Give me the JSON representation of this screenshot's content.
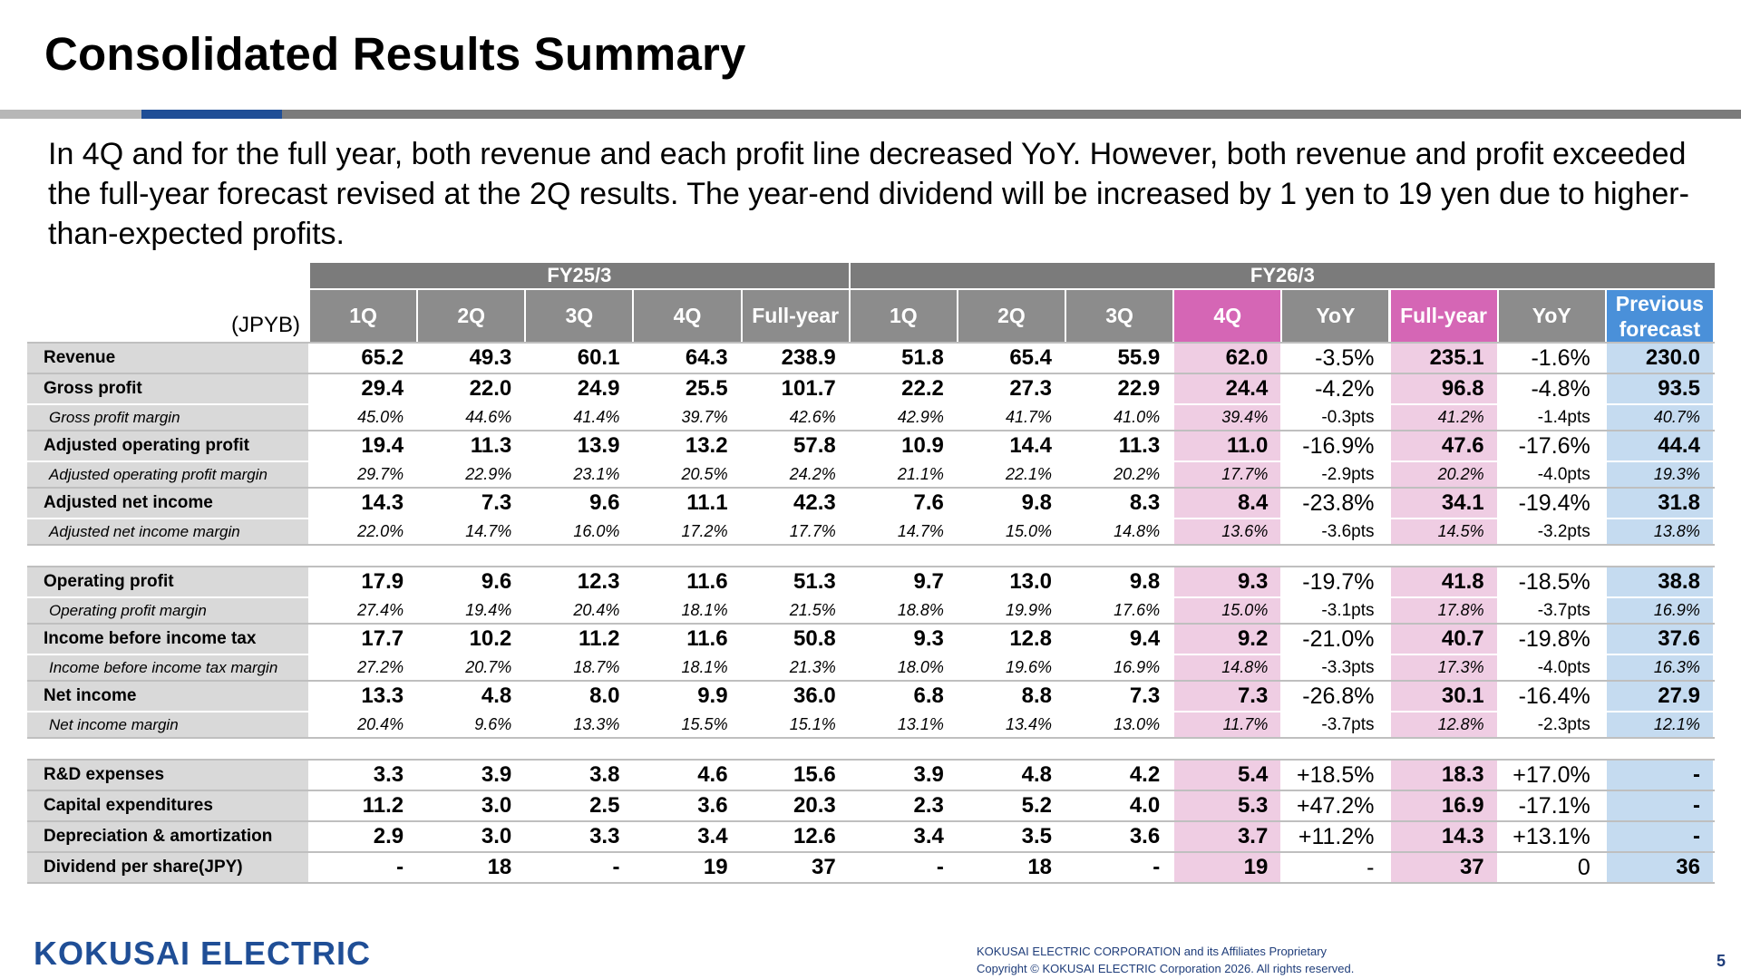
{
  "title": "Consolidated Results Summary",
  "intro": "In 4Q and for the full year, both revenue and each profit line decreased YoY. However, both revenue and profit exceeded the full-year forecast revised at the 2Q results. The year-end dividend will be increased by 1 yen to 19 yen due to higher-than-expected profits.",
  "table": {
    "unit": "(JPYB)",
    "groups": [
      "FY25/3",
      "FY26/3"
    ],
    "columns": [
      "1Q",
      "2Q",
      "3Q",
      "4Q",
      "Full-year",
      "1Q",
      "2Q",
      "3Q",
      "4Q",
      "YoY",
      "Full-year",
      "YoY",
      "Previous forecast"
    ],
    "column_colors": {
      "gray": "#8c8c8c",
      "pink": "#d566b5",
      "blue": "#4a90d9",
      "group": "#7b7b7b"
    },
    "rows": [
      {
        "label": "Revenue",
        "type": "main",
        "values": [
          "65.2",
          "49.3",
          "60.1",
          "64.3",
          "238.9",
          "51.8",
          "65.4",
          "55.9",
          "62.0",
          "-3.5%",
          "235.1",
          "-1.6%",
          "230.0"
        ]
      },
      {
        "label": "Gross profit",
        "type": "main",
        "values": [
          "29.4",
          "22.0",
          "24.9",
          "25.5",
          "101.7",
          "22.2",
          "27.3",
          "22.9",
          "24.4",
          "-4.2%",
          "96.8",
          "-4.8%",
          "93.5"
        ]
      },
      {
        "label": "Gross profit margin",
        "type": "sub",
        "values": [
          "45.0%",
          "44.6%",
          "41.4%",
          "39.7%",
          "42.6%",
          "42.9%",
          "41.7%",
          "41.0%",
          "39.4%",
          "-0.3pts",
          "41.2%",
          "-1.4pts",
          "40.7%"
        ]
      },
      {
        "label": "Adjusted operating profit",
        "type": "main",
        "values": [
          "19.4",
          "11.3",
          "13.9",
          "13.2",
          "57.8",
          "10.9",
          "14.4",
          "11.3",
          "11.0",
          "-16.9%",
          "47.6",
          "-17.6%",
          "44.4"
        ]
      },
      {
        "label": "Adjusted operating profit margin",
        "type": "sub",
        "values": [
          "29.7%",
          "22.9%",
          "23.1%",
          "20.5%",
          "24.2%",
          "21.1%",
          "22.1%",
          "20.2%",
          "17.7%",
          "-2.9pts",
          "20.2%",
          "-4.0pts",
          "19.3%"
        ]
      },
      {
        "label": "Adjusted net income",
        "type": "main",
        "values": [
          "14.3",
          "7.3",
          "9.6",
          "11.1",
          "42.3",
          "7.6",
          "9.8",
          "8.3",
          "8.4",
          "-23.8%",
          "34.1",
          "-19.4%",
          "31.8"
        ]
      },
      {
        "label": "Adjusted net income margin",
        "type": "sub",
        "values": [
          "22.0%",
          "14.7%",
          "16.0%",
          "17.2%",
          "17.7%",
          "14.7%",
          "15.0%",
          "14.8%",
          "13.6%",
          "-3.6pts",
          "14.5%",
          "-3.2pts",
          "13.8%"
        ]
      },
      {
        "label": "Operating profit",
        "type": "main",
        "values": [
          "17.9",
          "9.6",
          "12.3",
          "11.6",
          "51.3",
          "9.7",
          "13.0",
          "9.8",
          "9.3",
          "-19.7%",
          "41.8",
          "-18.5%",
          "38.8"
        ]
      },
      {
        "label": "Operating profit margin",
        "type": "sub",
        "values": [
          "27.4%",
          "19.4%",
          "20.4%",
          "18.1%",
          "21.5%",
          "18.8%",
          "19.9%",
          "17.6%",
          "15.0%",
          "-3.1pts",
          "17.8%",
          "-3.7pts",
          "16.9%"
        ]
      },
      {
        "label": "Income before income tax",
        "type": "main",
        "values": [
          "17.7",
          "10.2",
          "11.2",
          "11.6",
          "50.8",
          "9.3",
          "12.8",
          "9.4",
          "9.2",
          "-21.0%",
          "40.7",
          "-19.8%",
          "37.6"
        ]
      },
      {
        "label": "Income before income tax margin",
        "type": "sub",
        "values": [
          "27.2%",
          "20.7%",
          "18.7%",
          "18.1%",
          "21.3%",
          "18.0%",
          "19.6%",
          "16.9%",
          "14.8%",
          "-3.3pts",
          "17.3%",
          "-4.0pts",
          "16.3%"
        ]
      },
      {
        "label": "Net income",
        "type": "main",
        "values": [
          "13.3",
          "4.8",
          "8.0",
          "9.9",
          "36.0",
          "6.8",
          "8.8",
          "7.3",
          "7.3",
          "-26.8%",
          "30.1",
          "-16.4%",
          "27.9"
        ]
      },
      {
        "label": "Net income margin",
        "type": "sub",
        "values": [
          "20.4%",
          "9.6%",
          "13.3%",
          "15.5%",
          "15.1%",
          "13.1%",
          "13.4%",
          "13.0%",
          "11.7%",
          "-3.7pts",
          "12.8%",
          "-2.3pts",
          "12.1%"
        ]
      },
      {
        "label": "R&D expenses",
        "type": "main",
        "values": [
          "3.3",
          "3.9",
          "3.8",
          "4.6",
          "15.6",
          "3.9",
          "4.8",
          "4.2",
          "5.4",
          "+18.5%",
          "18.3",
          "+17.0%",
          "-"
        ]
      },
      {
        "label": "Capital expenditures",
        "type": "main",
        "values": [
          "11.2",
          "3.0",
          "2.5",
          "3.6",
          "20.3",
          "2.3",
          "5.2",
          "4.0",
          "5.3",
          "+47.2%",
          "16.9",
          "-17.1%",
          "-"
        ]
      },
      {
        "label": "Depreciation & amortization",
        "type": "main",
        "values": [
          "2.9",
          "3.0",
          "3.3",
          "3.4",
          "12.6",
          "3.4",
          "3.5",
          "3.6",
          "3.7",
          "+11.2%",
          "14.3",
          "+13.1%",
          "-"
        ]
      },
      {
        "label": "Dividend per share(JPY)",
        "type": "main",
        "values": [
          "-",
          "18",
          "-",
          "19",
          "37",
          "-",
          "18",
          "-",
          "19",
          "-",
          "37",
          "0",
          "36"
        ]
      }
    ]
  },
  "logo": "KOKUSAI ELECTRIC",
  "footer": {
    "line1": "KOKUSAI ELECTRIC CORPORATION and its Affiliates Proprietary",
    "line2": "Copyright © KOKUSAI ELECTRIC Corporation 2026. All rights reserved."
  },
  "page_number": "5"
}
